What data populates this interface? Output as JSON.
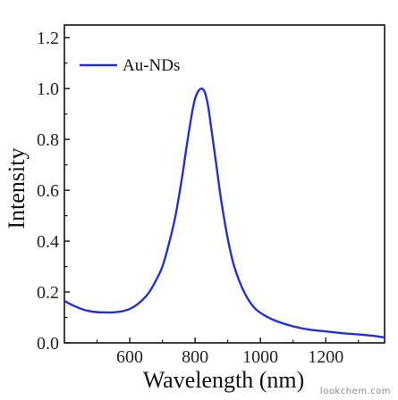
{
  "chart_data": {
    "type": "line",
    "title": "",
    "xlabel": "Wavelength (nm)",
    "ylabel": "Intensity",
    "xlim": [
      400,
      1380
    ],
    "ylim": [
      0,
      1.25
    ],
    "xticks": [
      600,
      800,
      1000,
      1200
    ],
    "xtick_labels": [
      "600",
      "800",
      "1000",
      "1200"
    ],
    "yticks": [
      0.0,
      0.2,
      0.4,
      0.6,
      0.8,
      1.0,
      1.2
    ],
    "ytick_labels": [
      "0.0",
      "0.2",
      "0.4",
      "0.6",
      "0.8",
      "1.0",
      "1.2"
    ],
    "grid": false,
    "legend_position": "top-left",
    "series": [
      {
        "name": "Au-NDs",
        "color": "#2233cc",
        "x": [
          400,
          430,
          460,
          490,
          520,
          550,
          580,
          610,
          640,
          660,
          680,
          700,
          720,
          740,
          760,
          775,
          790,
          800,
          810,
          820,
          830,
          840,
          850,
          865,
          880,
          900,
          920,
          950,
          980,
          1010,
          1050,
          1100,
          1150,
          1200,
          1250,
          1300,
          1350,
          1375
        ],
        "y": [
          0.165,
          0.145,
          0.13,
          0.122,
          0.12,
          0.12,
          0.125,
          0.14,
          0.17,
          0.2,
          0.245,
          0.3,
          0.39,
          0.5,
          0.65,
          0.78,
          0.9,
          0.96,
          0.99,
          1.0,
          0.985,
          0.93,
          0.84,
          0.7,
          0.56,
          0.41,
          0.3,
          0.2,
          0.14,
          0.11,
          0.085,
          0.065,
          0.052,
          0.045,
          0.038,
          0.033,
          0.027,
          0.022
        ]
      }
    ]
  },
  "watermark": "lookchem.com"
}
